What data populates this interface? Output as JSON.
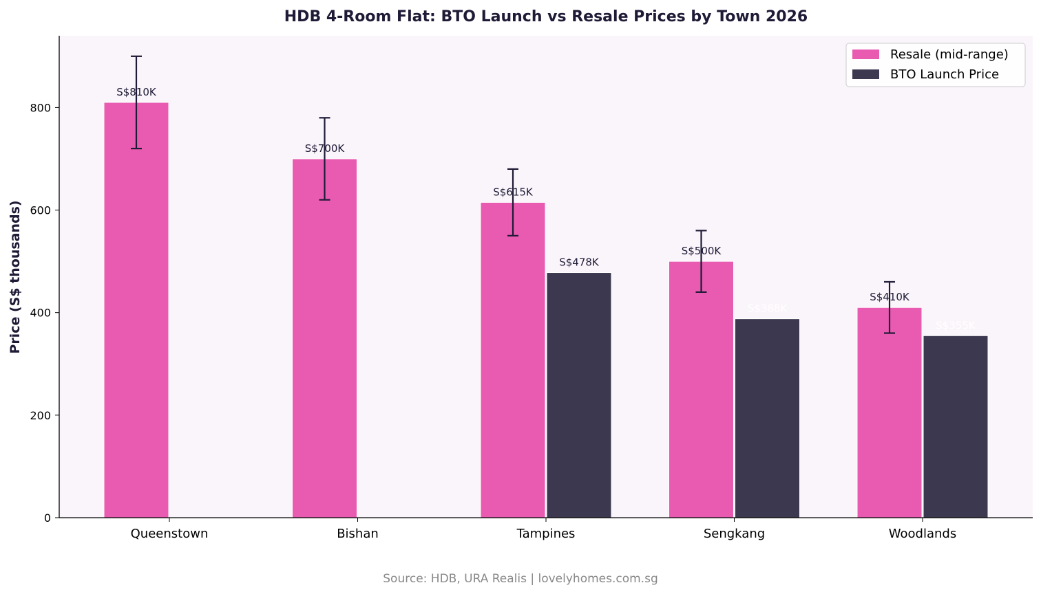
{
  "chart_data": {
    "type": "bar",
    "title": "HDB 4-Room Flat: BTO Launch vs Resale Prices by Town 2026",
    "xlabel": "",
    "ylabel": "Price (S$ thousands)",
    "ylim": [
      0,
      940
    ],
    "yticks": [
      0,
      200,
      400,
      600,
      800
    ],
    "grid": false,
    "legend_position": "top-right",
    "categories": [
      "Queenstown",
      "Bishan",
      "Tampines",
      "Sengkang",
      "Woodlands"
    ],
    "series": [
      {
        "name": "Resale (mid-range)",
        "color": "#e85bb1",
        "values": [
          810,
          700,
          615,
          500,
          410
        ],
        "error_low": [
          720,
          620,
          550,
          440,
          360
        ],
        "error_high": [
          900,
          780,
          680,
          560,
          460
        ],
        "labels": [
          "S$810K",
          "S$700K",
          "S$615K",
          "S$500K",
          "S$410K"
        ]
      },
      {
        "name": "BTO Launch Price",
        "color": "#3c3850",
        "values": [
          null,
          null,
          478,
          388,
          355
        ],
        "labels": [
          "",
          "",
          "S$478K",
          "S$388K",
          "S$355K"
        ]
      }
    ],
    "source": "Source: HDB, URA Realis | lovelyhomes.com.sg"
  },
  "colors": {
    "plot_background": "#faf5fa",
    "error_bar": "#1f1a36",
    "title": "#1f1a36",
    "source_text": "#888888"
  }
}
